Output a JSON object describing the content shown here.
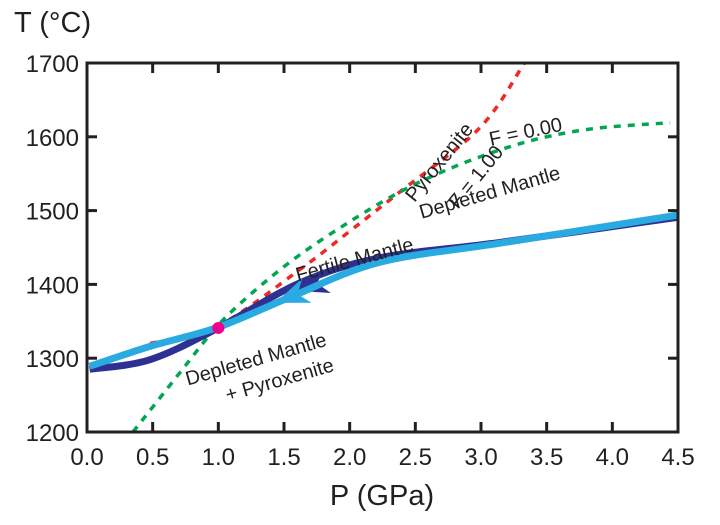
{
  "chart_data": {
    "type": "line",
    "title": "",
    "xlabel": "P (GPa)",
    "ylabel": "T (°C)",
    "xlim": [
      0.0,
      4.5
    ],
    "ylim": [
      1200,
      1700
    ],
    "grid": false,
    "x_ticks": [
      "0.0",
      "0.5",
      "1.0",
      "1.5",
      "2.0",
      "2.5",
      "3.0",
      "3.5",
      "4.0",
      "4.5"
    ],
    "y_ticks": [
      "1200",
      "1300",
      "1400",
      "1500",
      "1600",
      "1700"
    ],
    "series": [
      {
        "name": "Pyroxenite F = 1.00",
        "style": "dashed",
        "color": "#ee2a24",
        "points": [
          [
            0.48,
            1320
          ],
          [
            1.0,
            1344
          ],
          [
            1.62,
            1420
          ],
          [
            2.0,
            1472
          ],
          [
            2.38,
            1525
          ],
          [
            2.99,
            1612
          ],
          [
            3.33,
            1700
          ]
        ]
      },
      {
        "name": "Depleted Mantle F = 0.00",
        "style": "dashed",
        "color": "#00a651",
        "points": [
          [
            0.35,
            1200
          ],
          [
            0.71,
            1281
          ],
          [
            1.0,
            1345
          ],
          [
            1.3,
            1395
          ],
          [
            1.62,
            1440
          ],
          [
            2.0,
            1485
          ],
          [
            2.38,
            1525
          ],
          [
            2.75,
            1556
          ],
          [
            3.14,
            1582
          ],
          [
            3.5,
            1600
          ],
          [
            3.9,
            1612
          ],
          [
            4.44,
            1619
          ]
        ]
      },
      {
        "name": "Fertile Mantle",
        "style": "solid",
        "color": "#2e3192",
        "points": [
          [
            0.02,
            1285
          ],
          [
            0.48,
            1298
          ],
          [
            1.0,
            1341
          ],
          [
            1.62,
            1402
          ],
          [
            2.23,
            1436
          ],
          [
            3.15,
            1457
          ],
          [
            4.5,
            1491
          ]
        ],
        "arrow_at": [
          1.7,
          1398
        ]
      },
      {
        "name": "Depleted Mantle + Pyroxenite",
        "style": "solid",
        "color": "#29aae1",
        "points": [
          [
            0.02,
            1289
          ],
          [
            0.48,
            1316
          ],
          [
            1.0,
            1342
          ],
          [
            1.55,
            1383
          ],
          [
            2.23,
            1430
          ],
          [
            3.15,
            1456
          ],
          [
            4.5,
            1494
          ]
        ],
        "arrow_at": [
          1.55,
          1383
        ]
      }
    ],
    "markers": [
      {
        "name": "intersection-point",
        "x": 1.0,
        "y": 1341,
        "color": "#ec008c"
      }
    ],
    "annotations": [
      {
        "id": "pyroxenite",
        "text": "Pyroxenite",
        "x": 2.72,
        "y": 1560,
        "angle": -51
      },
      {
        "id": "f100",
        "text": "F = 1.00",
        "x": 3.0,
        "y": 1540,
        "angle": -51
      },
      {
        "id": "f000",
        "text": "F = 0.00",
        "x": 3.35,
        "y": 1598,
        "angle": -12
      },
      {
        "id": "depleted",
        "text": "Depleted Mantle",
        "x": 3.08,
        "y": 1516,
        "angle": -16
      },
      {
        "id": "fertile",
        "text": "Fertile Mantle",
        "x": 2.05,
        "y": 1425,
        "angle": -15
      },
      {
        "id": "dep-pyx-1",
        "text": "Depleted Mantle",
        "x": 1.3,
        "y": 1290,
        "angle": -16
      },
      {
        "id": "dep-pyx-2",
        "text": "+ Pyroxenite",
        "x": 1.48,
        "y": 1262,
        "angle": -16
      }
    ]
  }
}
